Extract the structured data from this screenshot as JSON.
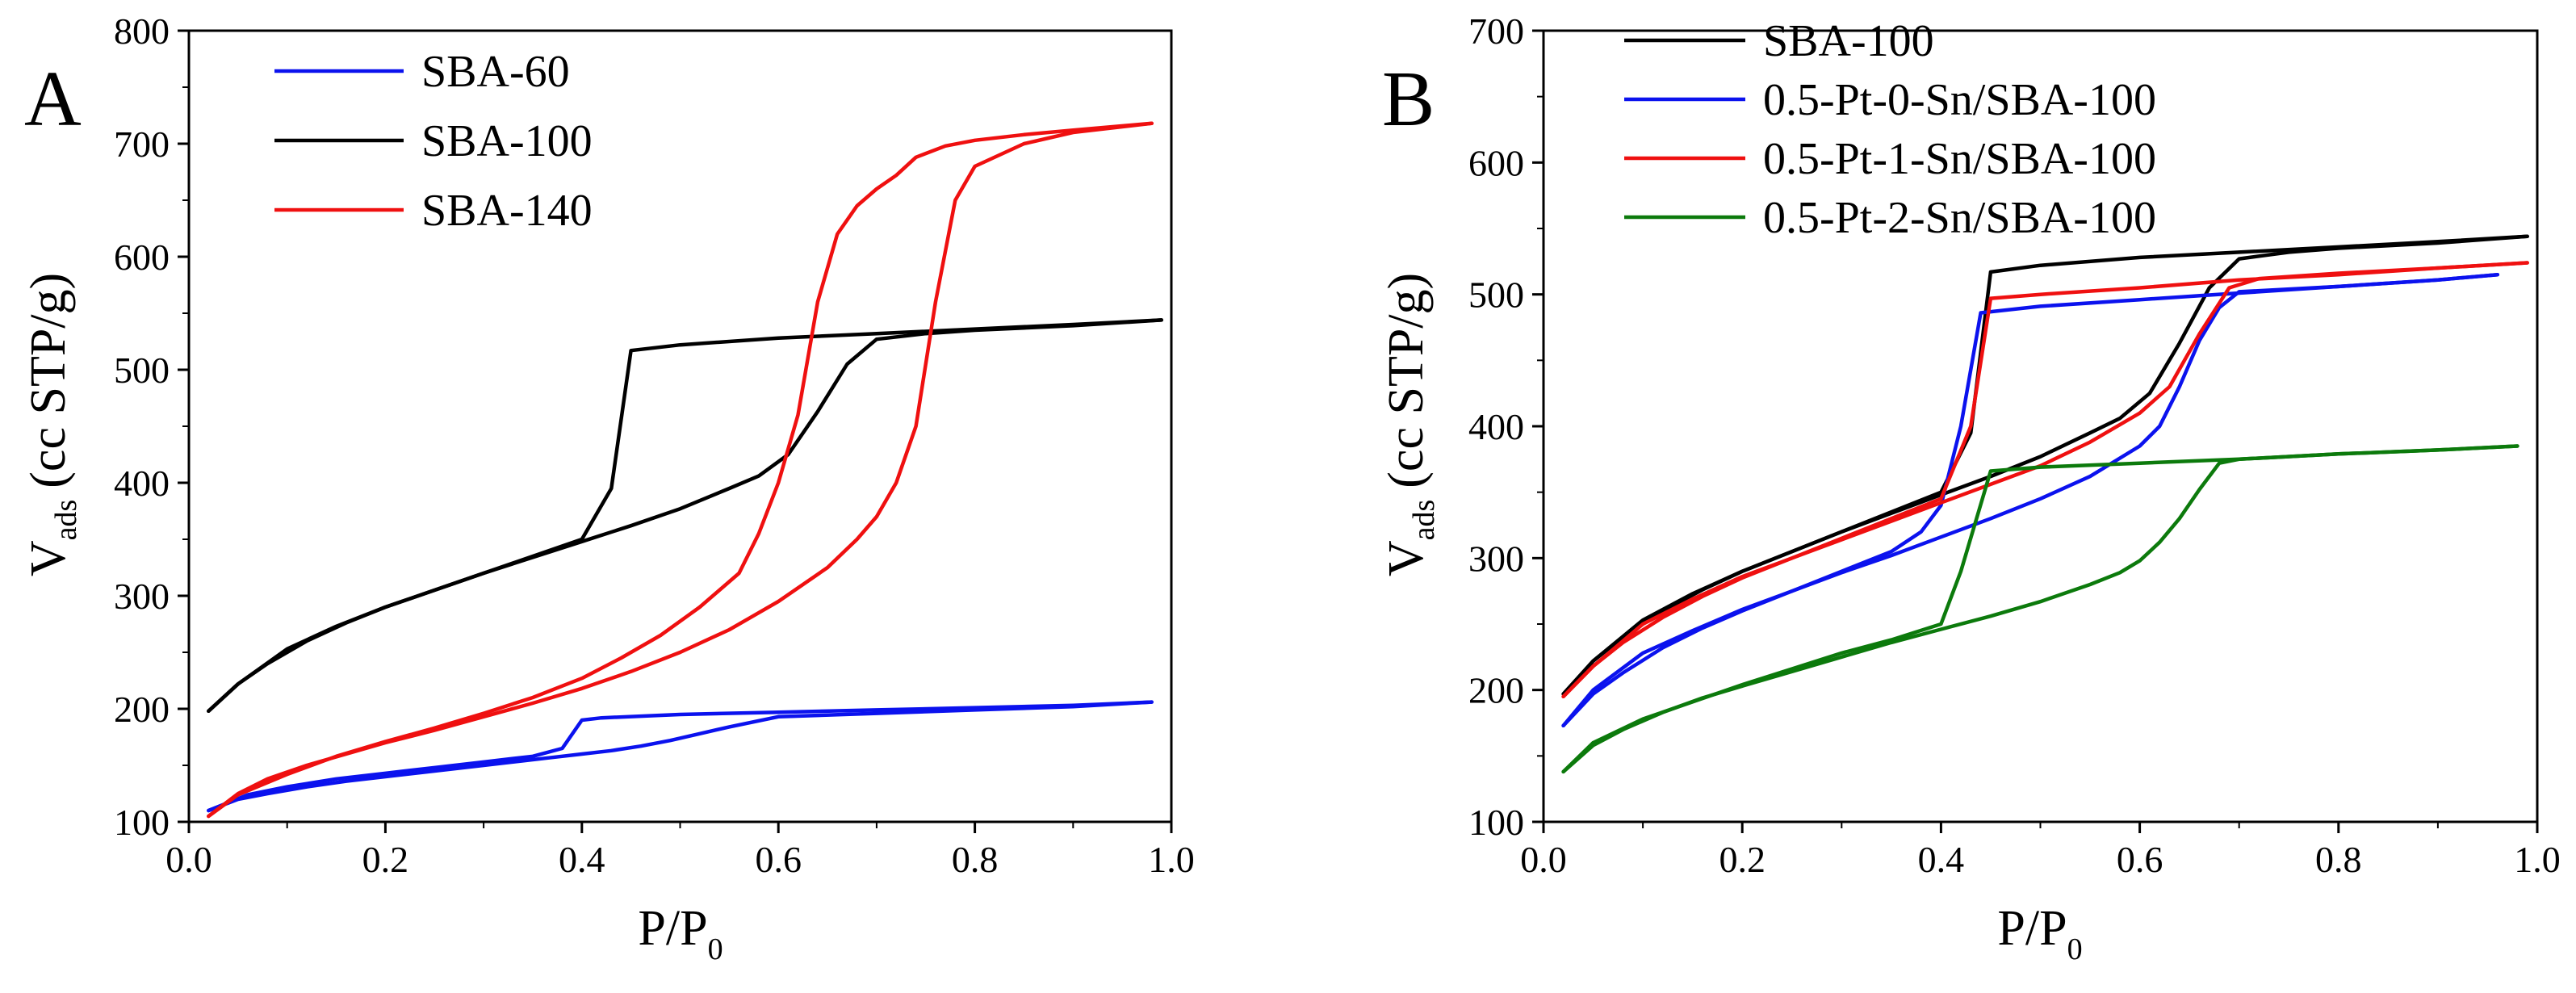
{
  "chart_data": [
    {
      "panel_label": "A",
      "type": "line",
      "title": "",
      "xlabel": {
        "main": "P/P",
        "sub": "0"
      },
      "ylabel": {
        "main": "V",
        "sub": "ads",
        "unit": "(cc STP/g)"
      },
      "xlim": [
        0.0,
        1.0
      ],
      "ylim": [
        100,
        800
      ],
      "xticks": [
        "0.0",
        "0.2",
        "0.4",
        "0.6",
        "0.8",
        "1.0"
      ],
      "yticks": [
        "100",
        "200",
        "300",
        "400",
        "500",
        "600",
        "700",
        "800"
      ],
      "legend_position": "top-left",
      "series": [
        {
          "name": "SBA-60",
          "color": "#0b12ee",
          "adsorption": {
            "x": [
              0.02,
              0.05,
              0.08,
              0.12,
              0.16,
              0.2,
              0.25,
              0.3,
              0.34,
              0.37,
              0.4,
              0.43,
              0.46,
              0.49,
              0.52,
              0.55,
              0.6,
              0.7,
              0.8,
              0.9,
              0.98
            ],
            "y": [
              110,
              120,
              125,
              131,
              136,
              140,
              145,
              150,
              154,
              157,
              160,
              163,
              167,
              172,
              178,
              184,
              193,
              196,
              199,
              202,
              206
            ]
          },
          "desorption": {
            "x": [
              0.98,
              0.9,
              0.8,
              0.7,
              0.6,
              0.5,
              0.42,
              0.4,
              0.38,
              0.35,
              0.3,
              0.25,
              0.2,
              0.15,
              0.1,
              0.06,
              0.02
            ],
            "y": [
              206,
              203,
              201,
              199,
              197,
              195,
              192,
              190,
              165,
              158,
              153,
              148,
              143,
              138,
              131,
              124,
              110
            ]
          }
        },
        {
          "name": "SBA-100",
          "color": "#000000",
          "adsorption": {
            "x": [
              0.02,
              0.05,
              0.08,
              0.12,
              0.16,
              0.2,
              0.25,
              0.3,
              0.35,
              0.4,
              0.45,
              0.5,
              0.55,
              0.58,
              0.61,
              0.64,
              0.67,
              0.7,
              0.75,
              0.8,
              0.9,
              0.99
            ],
            "y": [
              198,
              222,
              240,
              260,
              276,
              290,
              305,
              320,
              334,
              348,
              362,
              377,
              395,
              406,
              425,
              463,
              505,
              527,
              532,
              535,
              539,
              544
            ]
          },
          "desorption": {
            "x": [
              0.99,
              0.9,
              0.8,
              0.7,
              0.6,
              0.5,
              0.45,
              0.43,
              0.4,
              0.35,
              0.3,
              0.25,
              0.2,
              0.15,
              0.1,
              0.05,
              0.02
            ],
            "y": [
              544,
              540,
              536,
              532,
              528,
              522,
              517,
              395,
              350,
              335,
              320,
              305,
              290,
              273,
              253,
              222,
              198
            ]
          }
        },
        {
          "name": "SBA-140",
          "color": "#ef1010",
          "adsorption": {
            "x": [
              0.02,
              0.05,
              0.08,
              0.12,
              0.16,
              0.2,
              0.25,
              0.3,
              0.35,
              0.4,
              0.45,
              0.5,
              0.55,
              0.6,
              0.65,
              0.68,
              0.7,
              0.72,
              0.74,
              0.76,
              0.78,
              0.8,
              0.85,
              0.9,
              0.98
            ],
            "y": [
              105,
              125,
              138,
              150,
              160,
              170,
              181,
              193,
              205,
              218,
              233,
              250,
              270,
              295,
              325,
              350,
              370,
              400,
              450,
              560,
              650,
              680,
              700,
              710,
              718
            ]
          },
          "desorption": {
            "x": [
              0.98,
              0.9,
              0.85,
              0.8,
              0.77,
              0.74,
              0.72,
              0.7,
              0.68,
              0.66,
              0.64,
              0.62,
              0.6,
              0.58,
              0.56,
              0.52,
              0.48,
              0.44,
              0.4,
              0.35,
              0.3,
              0.25,
              0.2,
              0.15,
              0.1,
              0.05,
              0.02
            ],
            "y": [
              718,
              712,
              708,
              703,
              698,
              688,
              672,
              660,
              645,
              620,
              560,
              460,
              400,
              355,
              320,
              290,
              265,
              245,
              227,
              210,
              196,
              183,
              171,
              158,
              142,
              124,
              105
            ]
          }
        }
      ]
    },
    {
      "panel_label": "B",
      "type": "line",
      "title": "",
      "xlabel": {
        "main": "P/P",
        "sub": "0"
      },
      "ylabel": {
        "main": "V",
        "sub": "ads",
        "unit": "(cc STP/g)"
      },
      "xlim": [
        0.0,
        1.0
      ],
      "ylim": [
        100,
        700
      ],
      "xticks": [
        "0.0",
        "0.2",
        "0.4",
        "0.6",
        "0.8",
        "1.0"
      ],
      "yticks": [
        "100",
        "200",
        "300",
        "400",
        "500",
        "600",
        "700"
      ],
      "legend_position": "top-left",
      "series": [
        {
          "name": "SBA-100",
          "color": "#000000",
          "adsorption": {
            "x": [
              0.02,
              0.05,
              0.08,
              0.12,
              0.16,
              0.2,
              0.25,
              0.3,
              0.35,
              0.4,
              0.45,
              0.5,
              0.55,
              0.58,
              0.61,
              0.64,
              0.67,
              0.7,
              0.75,
              0.8,
              0.9,
              0.99
            ],
            "y": [
              197,
              222,
              240,
              260,
              276,
              290,
              305,
              320,
              334,
              348,
              362,
              377,
              395,
              406,
              425,
              463,
              505,
              527,
              532,
              535,
              539,
              544
            ]
          },
          "desorption": {
            "x": [
              0.99,
              0.9,
              0.8,
              0.7,
              0.6,
              0.5,
              0.45,
              0.43,
              0.4,
              0.35,
              0.3,
              0.25,
              0.2,
              0.15,
              0.1,
              0.05,
              0.02
            ],
            "y": [
              544,
              540,
              536,
              532,
              528,
              522,
              517,
              395,
              350,
              335,
              320,
              305,
              290,
              273,
              253,
              222,
              197
            ]
          }
        },
        {
          "name": "0.5-Pt-0-Sn/SBA-100",
          "color": "#0b12ee",
          "adsorption": {
            "x": [
              0.02,
              0.05,
              0.08,
              0.12,
              0.16,
              0.2,
              0.25,
              0.3,
              0.35,
              0.4,
              0.45,
              0.5,
              0.55,
              0.6,
              0.62,
              0.64,
              0.66,
              0.68,
              0.7,
              0.8,
              0.9,
              0.96
            ],
            "y": [
              173,
              197,
              213,
              232,
              247,
              260,
              275,
              289,
              302,
              316,
              330,
              345,
              362,
              385,
              400,
              430,
              465,
              490,
              502,
              506,
              511,
              515
            ]
          },
          "desorption": {
            "x": [
              0.96,
              0.9,
              0.8,
              0.7,
              0.6,
              0.5,
              0.44,
              0.42,
              0.4,
              0.38,
              0.35,
              0.3,
              0.25,
              0.2,
              0.15,
              0.1,
              0.05,
              0.02
            ],
            "y": [
              515,
              511,
              506,
              501,
              496,
              491,
              486,
              400,
              340,
              320,
              305,
              290,
              275,
              261,
              245,
              228,
              200,
              173
            ]
          }
        },
        {
          "name": "0.5-Pt-1-Sn/SBA-100",
          "color": "#ef1010",
          "adsorption": {
            "x": [
              0.02,
              0.05,
              0.08,
              0.12,
              0.16,
              0.2,
              0.25,
              0.3,
              0.35,
              0.4,
              0.45,
              0.5,
              0.55,
              0.6,
              0.63,
              0.66,
              0.69,
              0.72,
              0.8,
              0.9,
              0.99
            ],
            "y": [
              195,
              218,
              236,
              255,
              271,
              285,
              300,
              314,
              328,
              342,
              356,
              370,
              388,
              410,
              430,
              470,
              505,
              512,
              516,
              520,
              524
            ]
          },
          "desorption": {
            "x": [
              0.99,
              0.9,
              0.8,
              0.7,
              0.6,
              0.5,
              0.45,
              0.43,
              0.4,
              0.35,
              0.3,
              0.25,
              0.2,
              0.15,
              0.1,
              0.05,
              0.02
            ],
            "y": [
              524,
              520,
              515,
              511,
              505,
              500,
              497,
              400,
              345,
              330,
              315,
              300,
              286,
              269,
              250,
              218,
              195
            ]
          }
        },
        {
          "name": "0.5-Pt-2-Sn/SBA-100",
          "color": "#0c7a0c",
          "adsorption": {
            "x": [
              0.02,
              0.05,
              0.08,
              0.12,
              0.16,
              0.2,
              0.25,
              0.3,
              0.35,
              0.4,
              0.45,
              0.5,
              0.55,
              0.58,
              0.6,
              0.62,
              0.64,
              0.66,
              0.68,
              0.7,
              0.8,
              0.9,
              0.98
            ],
            "y": [
              138,
              158,
              170,
              183,
              194,
              203,
              214,
              225,
              236,
              246,
              256,
              267,
              280,
              289,
              298,
              312,
              330,
              352,
              372,
              375,
              379,
              382,
              385
            ]
          },
          "desorption": {
            "x": [
              0.98,
              0.9,
              0.8,
              0.7,
              0.6,
              0.5,
              0.45,
              0.42,
              0.4,
              0.35,
              0.3,
              0.25,
              0.2,
              0.15,
              0.1,
              0.05,
              0.02
            ],
            "y": [
              385,
              382,
              379,
              375,
              372,
              369,
              366,
              290,
              250,
              238,
              228,
              216,
              204,
              191,
              178,
              160,
              138
            ]
          }
        }
      ]
    }
  ]
}
